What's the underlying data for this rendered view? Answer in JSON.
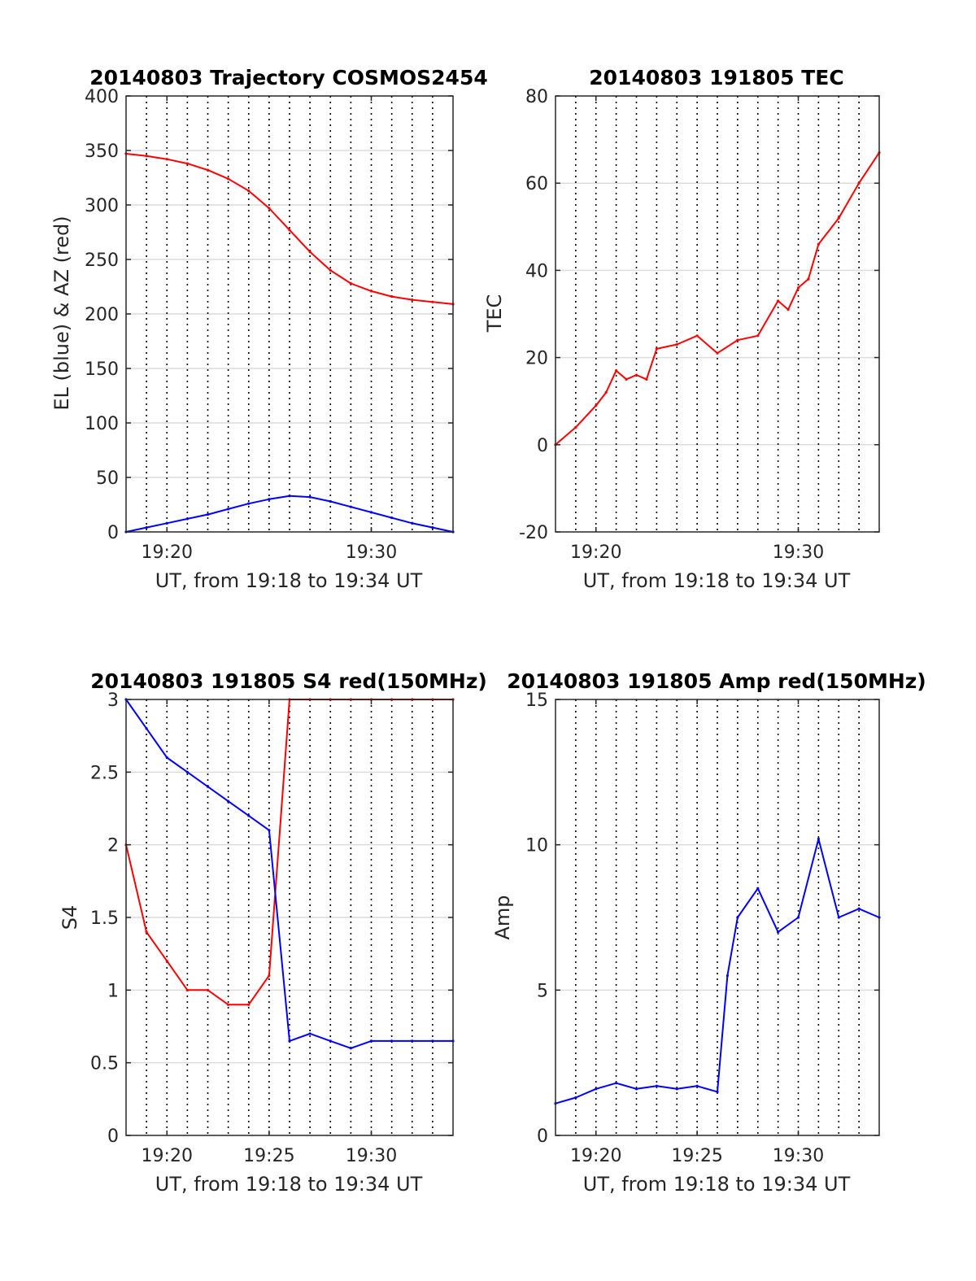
{
  "chart_data": [
    {
      "type": "line",
      "title": "20140803 Trajectory COSMOS2454",
      "xlabel": "UT, from 19:18 to 19:34 UT",
      "ylabel": "EL (blue) & AZ (red)",
      "xlim": [
        "19:18",
        "19:34"
      ],
      "ylim": [
        0,
        400
      ],
      "xticks": [
        "19:20",
        "19:30"
      ],
      "yticks": [
        0,
        50,
        100,
        150,
        200,
        250,
        300,
        350,
        400
      ],
      "grid": "dotted vertical every minute, light horizontal at y ticks",
      "series": [
        {
          "color": "#ff0000",
          "x": [
            "19:18",
            "19:19",
            "19:20",
            "19:21",
            "19:22",
            "19:23",
            "19:24",
            "19:25",
            "19:26",
            "19:27",
            "19:28",
            "19:29",
            "19:30",
            "19:31",
            "19:32",
            "19:33",
            "19:34"
          ],
          "values": [
            347,
            345,
            342,
            338,
            332,
            324,
            313,
            297,
            277,
            257,
            240,
            228,
            221,
            216,
            213,
            211,
            209
          ]
        },
        {
          "color": "#0000ff",
          "x": [
            "19:18",
            "19:19",
            "19:20",
            "19:21",
            "19:22",
            "19:23",
            "19:24",
            "19:25",
            "19:26",
            "19:27",
            "19:28",
            "19:29",
            "19:30",
            "19:31",
            "19:32",
            "19:33",
            "19:34"
          ],
          "values": [
            0,
            4,
            8,
            12,
            16,
            21,
            26,
            30,
            33,
            32,
            28,
            23,
            18,
            13,
            8,
            4,
            0
          ]
        }
      ]
    },
    {
      "type": "line",
      "title": "20140803 191805 TEC",
      "xlabel": "UT, from 19:18 to 19:34 UT",
      "ylabel": "TEC",
      "xlim": [
        "19:18",
        "19:34"
      ],
      "ylim": [
        -20,
        80
      ],
      "xticks": [
        "19:20",
        "19:30"
      ],
      "yticks": [
        -20,
        0,
        20,
        40,
        60,
        80
      ],
      "grid": "dotted vertical every minute, light horizontal at y ticks",
      "series": [
        {
          "color": "#ff0000",
          "x": [
            "19:18",
            "19:19",
            "19:20",
            "19:20:30",
            "19:21",
            "19:21:30",
            "19:22",
            "19:22:30",
            "19:23",
            "19:24",
            "19:25",
            "19:26",
            "19:27",
            "19:28",
            "19:29",
            "19:29:30",
            "19:30",
            "19:30:30",
            "19:31",
            "19:32",
            "19:33",
            "19:34"
          ],
          "values": [
            0,
            4,
            9,
            12,
            17,
            15,
            16,
            15,
            22,
            23,
            25,
            21,
            24,
            25,
            33,
            31,
            36,
            38,
            46,
            52,
            60,
            67
          ]
        }
      ]
    },
    {
      "type": "line",
      "title": "20140803 191805 S4 red(150MHz)",
      "xlabel": "UT, from 19:18 to 19:34 UT",
      "ylabel": "S4",
      "xlim": [
        "19:18",
        "19:34"
      ],
      "ylim": [
        0,
        3
      ],
      "xticks": [
        "19:20",
        "19:25",
        "19:30"
      ],
      "yticks": [
        0,
        0.5,
        1,
        1.5,
        2,
        2.5,
        3
      ],
      "grid": "dotted vertical every minute, light horizontal at y ticks",
      "series": [
        {
          "color": "#ff0000",
          "x": [
            "19:18",
            "19:19",
            "19:20",
            "19:21",
            "19:22",
            "19:23",
            "19:24",
            "19:25",
            "19:26",
            "19:27",
            "19:28",
            "19:29",
            "19:30",
            "19:31",
            "19:32",
            "19:33",
            "19:34"
          ],
          "values": [
            2.0,
            1.4,
            1.2,
            1.0,
            1.0,
            0.9,
            0.9,
            1.1,
            3.0,
            3.0,
            3.0,
            3.0,
            3.0,
            3.0,
            3.0,
            3.0,
            3.0
          ]
        },
        {
          "color": "#0000ff",
          "x": [
            "19:18",
            "19:19",
            "19:20",
            "19:21",
            "19:22",
            "19:23",
            "19:24",
            "19:25",
            "19:26",
            "19:27",
            "19:28",
            "19:29",
            "19:30",
            "19:31",
            "19:32",
            "19:33",
            "19:34"
          ],
          "values": [
            3.0,
            2.8,
            2.6,
            2.5,
            2.4,
            2.3,
            2.2,
            2.1,
            0.65,
            0.7,
            0.65,
            0.6,
            0.65,
            0.65,
            0.65,
            0.65,
            0.65
          ]
        }
      ]
    },
    {
      "type": "line",
      "title": "20140803 191805 Amp red(150MHz)",
      "xlabel": "UT, from 19:18 to 19:34 UT",
      "ylabel": "Amp",
      "xlim": [
        "19:18",
        "19:34"
      ],
      "ylim": [
        0,
        15
      ],
      "xticks": [
        "19:20",
        "19:25",
        "19:30"
      ],
      "yticks": [
        0,
        5,
        10,
        15
      ],
      "grid": "dotted vertical every minute, light horizontal at y ticks",
      "series": [
        {
          "color": "#0000ff",
          "x": [
            "19:18",
            "19:19",
            "19:20",
            "19:21",
            "19:22",
            "19:23",
            "19:24",
            "19:25",
            "19:26",
            "19:26:30",
            "19:27",
            "19:28",
            "19:29",
            "19:30",
            "19:31",
            "19:32",
            "19:33",
            "19:34"
          ],
          "values": [
            1.1,
            1.3,
            1.6,
            1.8,
            1.6,
            1.7,
            1.6,
            1.7,
            1.5,
            5.5,
            7.5,
            8.5,
            7.0,
            7.5,
            10.2,
            7.5,
            7.8,
            7.5
          ]
        }
      ]
    }
  ]
}
